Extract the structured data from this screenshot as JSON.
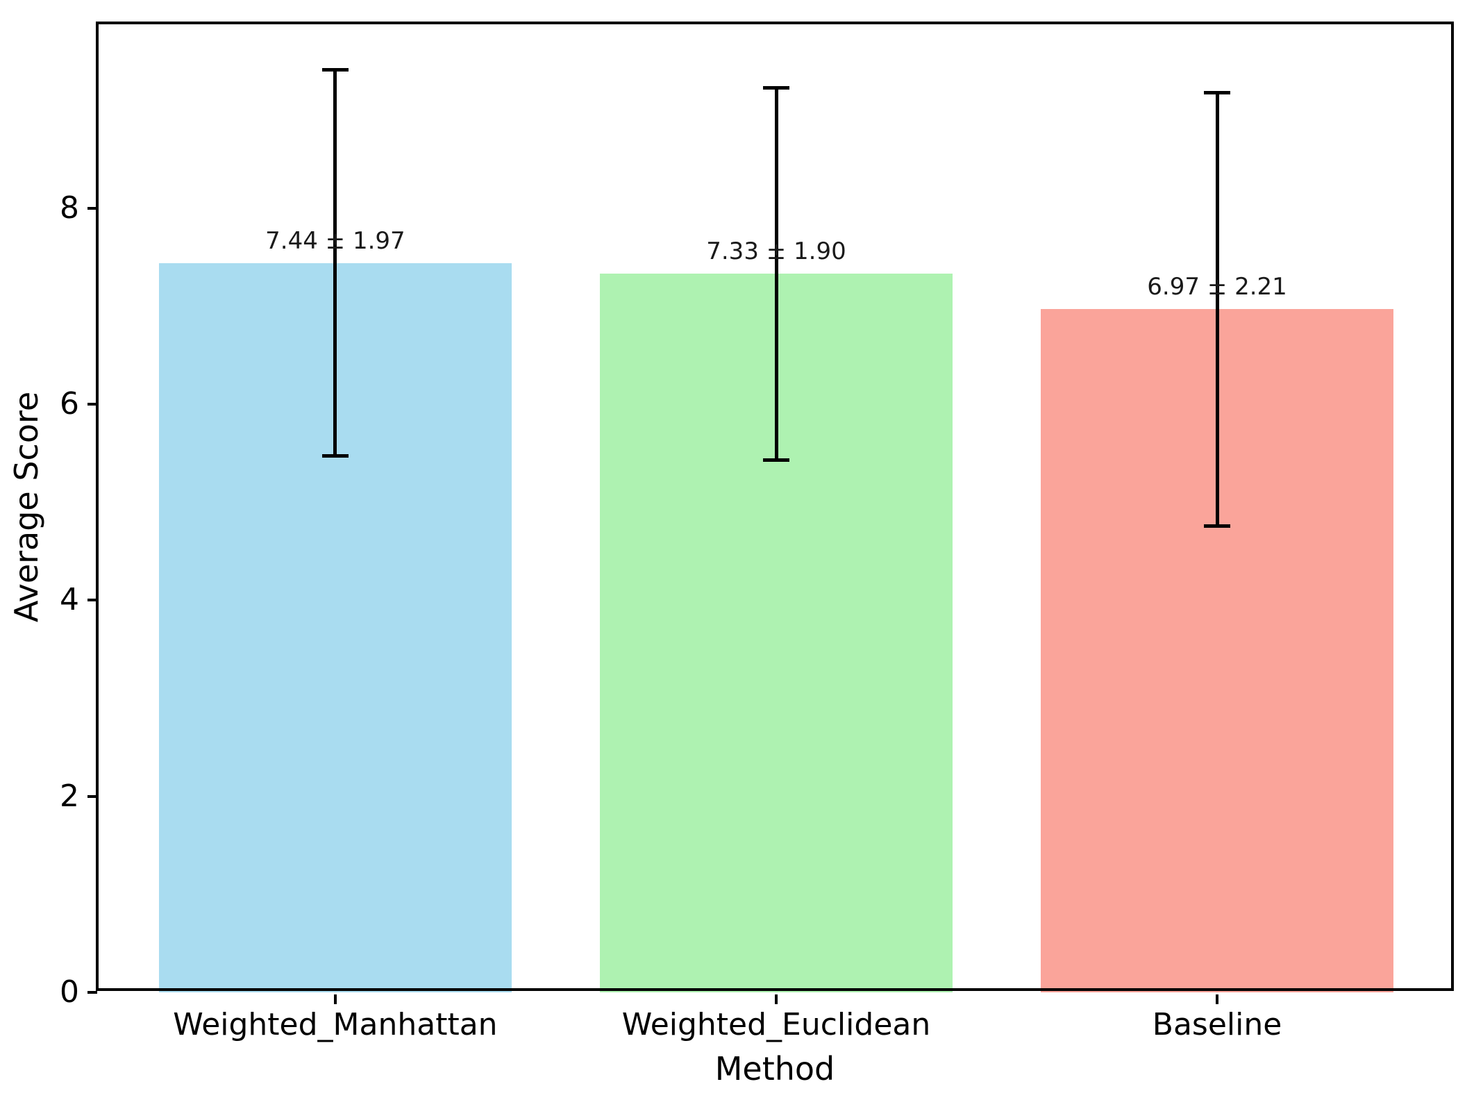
{
  "chart_data": {
    "type": "bar",
    "title": "",
    "xlabel": "Method",
    "ylabel": "Average Score",
    "categories": [
      "Weighted_Manhattan",
      "Weighted_Euclidean",
      "Baseline"
    ],
    "values": [
      7.44,
      7.33,
      6.97
    ],
    "errors": [
      1.97,
      1.9,
      2.21
    ],
    "value_labels": [
      "7.44 ± 1.97",
      "7.33 ± 1.90",
      "6.97 ± 2.21"
    ],
    "bar_colors": [
      "#A9DCF0",
      "#AEF2B1",
      "#FAA49A"
    ],
    "errorbar_color": "#000000",
    "yticks": [
      0,
      2,
      4,
      6,
      8
    ],
    "ylim": [
      0,
      9.89
    ],
    "xlim": [
      -0.54,
      2.54
    ],
    "bar_width": 0.8,
    "grid": false,
    "legend": null,
    "background_color": "#ffffff"
  }
}
